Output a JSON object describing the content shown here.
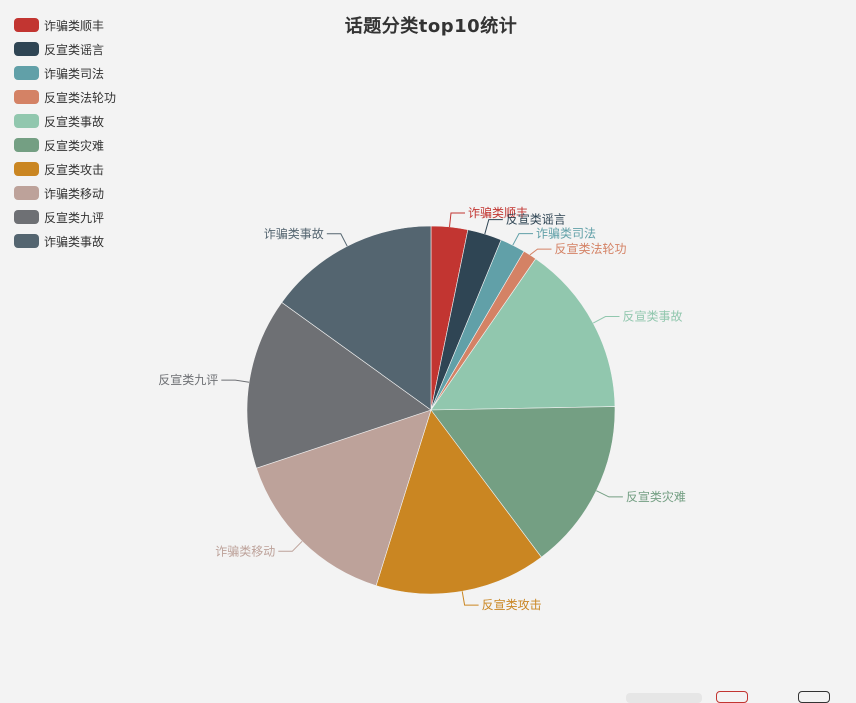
{
  "chart_data": {
    "type": "pie",
    "title": "话题分类top10统计",
    "legend_position": "top-left",
    "slices": [
      {
        "name": "诈骗类顺丰",
        "value": 3.2,
        "color": "#c23531"
      },
      {
        "name": "反宣类谣言",
        "value": 3.0,
        "color": "#2f4554"
      },
      {
        "name": "诈骗类司法",
        "value": 2.2,
        "color": "#61a0a8"
      },
      {
        "name": "反宣类法轮功",
        "value": 1.2,
        "color": "#d48265"
      },
      {
        "name": "反宣类事故",
        "value": 15.0,
        "color": "#91c7ae"
      },
      {
        "name": "反宣类灾难",
        "value": 15.0,
        "color": "#749f83"
      },
      {
        "name": "反宣类攻击",
        "value": 15.0,
        "color": "#ca8622"
      },
      {
        "name": "诈骗类移动",
        "value": 15.0,
        "color": "#bda29a"
      },
      {
        "name": "反宣类九评",
        "value": 15.0,
        "color": "#6e7074"
      },
      {
        "name": "诈骗类事故",
        "value": 15.0,
        "color": "#546570"
      }
    ]
  }
}
